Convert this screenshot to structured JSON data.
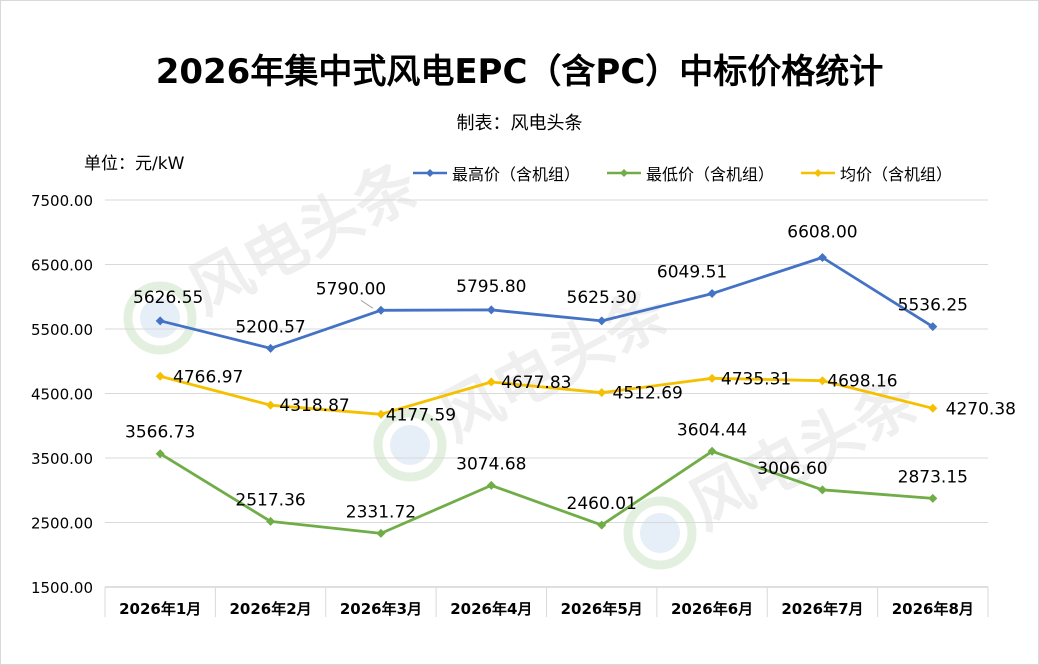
{
  "title": "2026年集中式风电EPC（含PC）中标价格统计",
  "subtitle": "制表：风电头条",
  "unit_label": "单位：元/kW",
  "watermark_text": "风电头条",
  "chart_data": {
    "type": "line",
    "title": "2026年集中式风电EPC（含PC）中标价格统计",
    "xlabel": "",
    "ylabel": "单位：元/kW",
    "ylim": [
      1500,
      7500
    ],
    "yticks": [
      "7500.00",
      "6500.00",
      "5500.00",
      "4500.00",
      "3500.00",
      "2500.00",
      "1500.00"
    ],
    "grid": true,
    "legend_position": "top-right",
    "categories": [
      "2026年1月",
      "2026年2月",
      "2026年3月",
      "2026年4月",
      "2026年5月",
      "2026年6月",
      "2026年7月",
      "2026年8月"
    ],
    "series": [
      {
        "name": "最高价（含机组）",
        "color": "#4472c4",
        "values": [
          5626.55,
          5200.57,
          5790.0,
          5795.8,
          5625.3,
          6049.51,
          6608.0,
          5536.25
        ],
        "labels": [
          "5626.55",
          "5200.57",
          "5790.00",
          "5795.80",
          "5625.30",
          "6049.51",
          "6608.00",
          "5536.25"
        ]
      },
      {
        "name": "最低价（含机组）",
        "color": "#70ad47",
        "values": [
          3566.73,
          2517.36,
          2331.72,
          3074.68,
          2460.01,
          3604.44,
          3006.6,
          2873.15
        ],
        "labels": [
          "3566.73",
          "2517.36",
          "2331.72",
          "3074.68",
          "2460.01",
          "3604.44",
          "3006.60",
          "2873.15"
        ]
      },
      {
        "name": "均价（含机组）",
        "color": "#f5c000",
        "values": [
          4766.97,
          4318.87,
          4177.59,
          4677.83,
          4512.69,
          4735.31,
          4698.16,
          4270.38
        ],
        "labels": [
          "4766.97",
          "4318.87",
          "4177.59",
          "4677.83",
          "4512.69",
          "4735.31",
          "4698.16",
          "4270.38"
        ]
      }
    ]
  }
}
